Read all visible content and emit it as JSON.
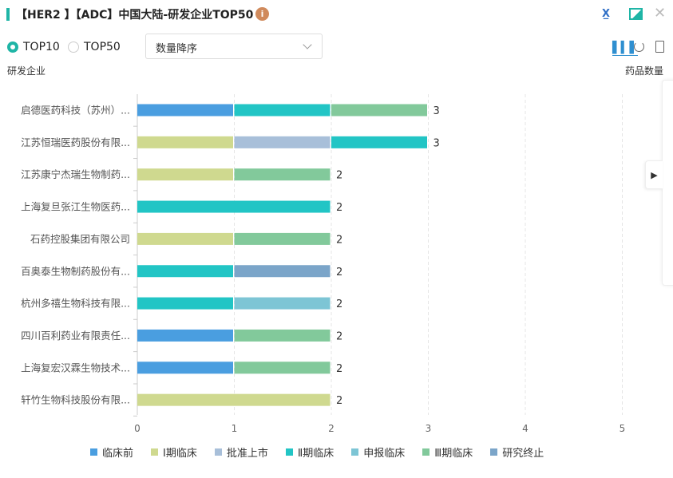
{
  "header": {
    "title": "【HER2 】【ADC】中国大陆-研发企业TOP50",
    "info_icon": "info-icon",
    "actions": [
      "excel-export-icon",
      "image-export-icon",
      "close-icon"
    ]
  },
  "controls": {
    "radios": [
      {
        "label": "TOP10",
        "checked": true
      },
      {
        "label": "TOP50",
        "checked": false
      }
    ],
    "sort": {
      "value": "数量降序"
    },
    "view_icons": [
      "bar-chart-icon",
      "pie-chart-icon",
      "document-icon"
    ]
  },
  "chart_data": {
    "type": "bar",
    "orientation": "horizontal",
    "stacked": true,
    "ylabel": "研发企业",
    "xlabel": "药品数量",
    "xlim": [
      0,
      5
    ],
    "xticks": [
      "0",
      "1",
      "2",
      "3",
      "4",
      "5"
    ],
    "grid": true,
    "legend_placement": "bottom",
    "categories": [
      "启德医药科技（苏州）...",
      "江苏恒瑞医药股份有限...",
      "江苏康宁杰瑞生物制药...",
      "上海复旦张江生物医药...",
      "石药控股集团有限公司",
      "百奥泰生物制药股份有...",
      "杭州多禧生物科技有限...",
      "四川百利药业有限责任...",
      "上海复宏汉霖生物技术...",
      "轩竹生物科技股份有限..."
    ],
    "totals": [
      3,
      3,
      2,
      2,
      2,
      2,
      2,
      2,
      2,
      2
    ],
    "series": [
      {
        "name": "临床前",
        "color": "#4a9ee0",
        "values": [
          1,
          0,
          0,
          0,
          0,
          0,
          0,
          1,
          1,
          0
        ]
      },
      {
        "name": "Ⅰ期临床",
        "color": "#cfd98f",
        "values": [
          0,
          1,
          1,
          0,
          1,
          0,
          0,
          0,
          0,
          2
        ]
      },
      {
        "name": "批准上市",
        "color": "#a8bfd9",
        "values": [
          0,
          1,
          0,
          0,
          0,
          0,
          0,
          0,
          0,
          0
        ]
      },
      {
        "name": "Ⅱ期临床",
        "color": "#22c5c5",
        "values": [
          1,
          1,
          0,
          2,
          0,
          1,
          1,
          0,
          0,
          0
        ]
      },
      {
        "name": "申报临床",
        "color": "#7dc5d5",
        "values": [
          0,
          0,
          0,
          0,
          0,
          0,
          1,
          0,
          0,
          0
        ]
      },
      {
        "name": "Ⅲ期临床",
        "color": "#82c99b",
        "values": [
          1,
          0,
          1,
          0,
          1,
          0,
          0,
          1,
          1,
          0
        ]
      },
      {
        "name": "研究终止",
        "color": "#7ba5c9",
        "values": [
          0,
          0,
          0,
          0,
          0,
          1,
          0,
          0,
          0,
          0
        ]
      }
    ]
  }
}
